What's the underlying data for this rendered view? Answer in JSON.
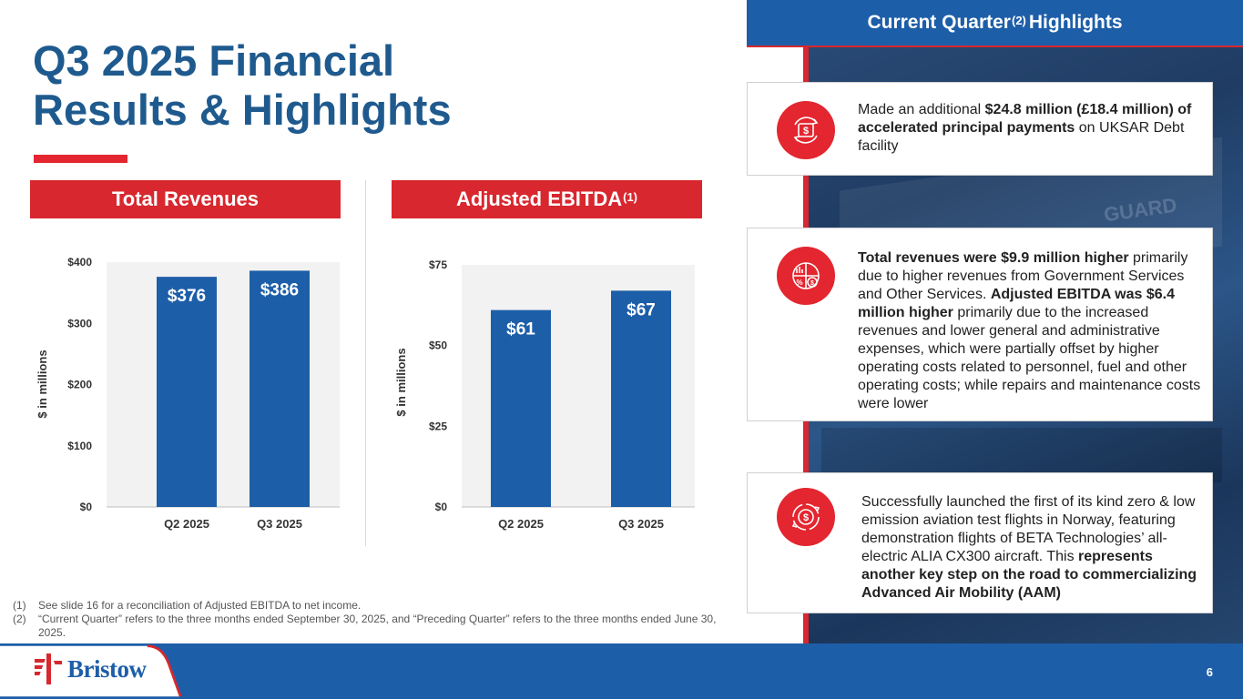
{
  "title": {
    "line1": "Q3 2025 Financial",
    "line2": "Results & Highlights"
  },
  "charts": {
    "revenue_header": "Total Revenues",
    "ebitda_header": "Adjusted EBITDA",
    "ebitda_header_sup": "(1)"
  },
  "chart_data": [
    {
      "type": "bar",
      "title": "Total Revenues",
      "ylabel": "$ in millions",
      "categories": [
        "Q2 2025",
        "Q3 2025"
      ],
      "values": [
        376,
        386
      ],
      "data_labels": [
        "$376",
        "$386"
      ],
      "ylim": [
        0,
        400
      ],
      "yticks": [
        0,
        100,
        200,
        300,
        400
      ],
      "ytick_labels": [
        "$0",
        "$100",
        "$200",
        "$300",
        "$400"
      ],
      "color": "#1d5ea8"
    },
    {
      "type": "bar",
      "title": "Adjusted EBITDA(1)",
      "ylabel": "$ in millions",
      "categories": [
        "Q2 2025",
        "Q3 2025"
      ],
      "values": [
        61,
        67
      ],
      "data_labels": [
        "$61",
        "$67"
      ],
      "ylim": [
        0,
        75
      ],
      "yticks": [
        0,
        25,
        50,
        75
      ],
      "ytick_labels": [
        "$0",
        "$25",
        "$50",
        "$75"
      ],
      "color": "#1d5ea8"
    }
  ],
  "highlights": {
    "header": "Current Quarter",
    "header_sup": "(2)",
    "header_suffix": "Highlights",
    "card1": {
      "icon": "money-cycle-icon",
      "pre": "Made an additional ",
      "bold": "$24.8 million (£18.4 million) of accelerated principal payments",
      "post": " on UKSAR Debt facility"
    },
    "card2": {
      "icon": "finance-chart-icon",
      "bold1": "Total revenues were $9.9 million higher",
      "text1": " primarily due to higher revenues from Government Services and Other Services. ",
      "bold2": "Adjusted EBITDA was $6.4 million higher",
      "text2": " primarily due to the increased revenues and lower general and administrative expenses, which were partially offset by higher operating costs related to personnel, fuel and other operating costs; while repairs and maintenance costs were lower"
    },
    "card3": {
      "icon": "dollar-exchange-icon",
      "text": "Successfully launched the first of its kind zero & low emission aviation test flights in Norway, featuring demonstration flights of BETA Technologies’ all-electric ALIA CX300 aircraft. This ",
      "bold": "represents another key step on the road to commercializing Advanced Air Mobility (AAM)"
    }
  },
  "footnotes": [
    {
      "num": "(1)",
      "text": "See slide 16 for a reconciliation of Adjusted EBITDA to net income."
    },
    {
      "num": "(2)",
      "text": "“Current Quarter” refers to the three months ended September 30, 2025, and “Preceding Quarter” refers to the three months ended June 30, 2025."
    }
  ],
  "footer": {
    "logo_text": "Bristow",
    "page_number": "6"
  },
  "background": {
    "ghost_text": "GUARD"
  },
  "colors": {
    "brand_blue": "#1d5ea8",
    "title_blue": "#1f5a8e",
    "accent_red": "#d8272e"
  }
}
